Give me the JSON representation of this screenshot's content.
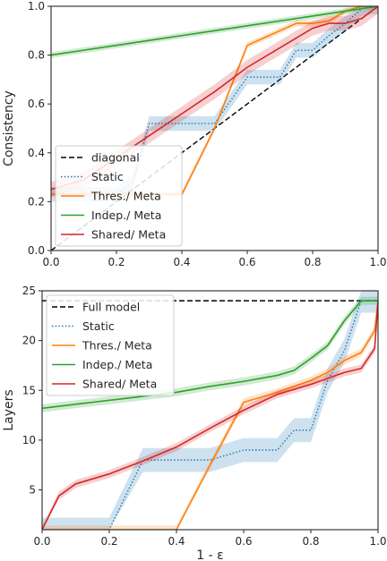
{
  "colors": {
    "diagonal": "#000000",
    "static": "#1f77b4",
    "thres": "#ff7f0e",
    "indep": "#2ca02c",
    "shared": "#d62728"
  },
  "chart_data": [
    {
      "type": "line",
      "xlabel": "",
      "ylabel": "Consistency",
      "xlim": [
        0,
        1
      ],
      "ylim": [
        0,
        1
      ],
      "xticks": [
        "0.0",
        "0.2",
        "0.4",
        "0.6",
        "0.8",
        "1.0"
      ],
      "yticks": [
        "0.0",
        "0.2",
        "0.4",
        "0.6",
        "0.8",
        "1.0"
      ],
      "legend_position": "lower-left",
      "series": [
        {
          "name": "diagonal",
          "style": "dashed",
          "color_key": "diagonal",
          "x": [
            0,
            1
          ],
          "y": [
            0,
            1
          ]
        },
        {
          "name": "Static",
          "style": "dotted",
          "color_key": "static",
          "x": [
            0.0,
            0.2,
            0.25,
            0.3,
            0.35,
            0.45,
            0.5,
            0.6,
            0.7,
            0.75,
            0.8,
            0.85,
            0.9,
            0.95,
            1.0
          ],
          "y": [
            0.23,
            0.23,
            0.28,
            0.52,
            0.52,
            0.52,
            0.52,
            0.71,
            0.71,
            0.82,
            0.82,
            0.88,
            0.93,
            0.99,
            1.0
          ],
          "band": 0.03
        },
        {
          "name": "Thres./ Meta",
          "style": "solid",
          "color_key": "thres",
          "x": [
            0.0,
            0.2,
            0.3,
            0.4,
            0.5,
            0.6,
            0.65,
            0.7,
            0.75,
            0.8,
            0.85,
            0.9,
            0.95,
            1.0
          ],
          "y": [
            0.23,
            0.23,
            0.23,
            0.23,
            0.5,
            0.84,
            0.87,
            0.9,
            0.93,
            0.93,
            0.94,
            0.98,
            1.0,
            1.0
          ],
          "band": 0.012
        },
        {
          "name": "Indep./ Meta",
          "style": "solid",
          "color_key": "indep",
          "x": [
            0.0,
            0.1,
            0.2,
            0.3,
            0.4,
            0.5,
            0.6,
            0.7,
            0.8,
            0.85,
            0.9,
            0.95,
            1.0
          ],
          "y": [
            0.8,
            0.82,
            0.84,
            0.86,
            0.88,
            0.9,
            0.92,
            0.94,
            0.96,
            0.97,
            0.98,
            0.99,
            1.0
          ],
          "band": 0.012
        },
        {
          "name": "Shared/ Meta",
          "style": "solid",
          "color_key": "shared",
          "x": [
            0.0,
            0.1,
            0.2,
            0.3,
            0.4,
            0.5,
            0.6,
            0.7,
            0.8,
            0.85,
            0.9,
            0.95,
            1.0
          ],
          "y": [
            0.25,
            0.29,
            0.38,
            0.47,
            0.56,
            0.65,
            0.75,
            0.83,
            0.91,
            0.93,
            0.93,
            0.95,
            1.0
          ],
          "band": 0.03
        }
      ]
    },
    {
      "type": "line",
      "xlabel": "1 - ε",
      "ylabel": "Layers",
      "xlim": [
        0,
        1
      ],
      "ylim": [
        1,
        25
      ],
      "xticks": [
        "0.0",
        "0.2",
        "0.4",
        "0.6",
        "0.8",
        "1.0"
      ],
      "yticks": [
        "5",
        "10",
        "15",
        "20",
        "25"
      ],
      "legend_position": "top-left",
      "series": [
        {
          "name": "Full model",
          "style": "dashed",
          "color_key": "diagonal",
          "x": [
            0,
            1
          ],
          "y": [
            24,
            24
          ]
        },
        {
          "name": "Static",
          "style": "dotted",
          "color_key": "static",
          "x": [
            0.0,
            0.2,
            0.3,
            0.5,
            0.6,
            0.7,
            0.75,
            0.8,
            0.85,
            0.9,
            0.95,
            1.0
          ],
          "y": [
            1,
            1,
            8,
            8,
            9,
            9,
            11,
            11,
            16,
            19,
            24,
            24
          ],
          "band": 1.2
        },
        {
          "name": "Thres./ Meta",
          "style": "solid",
          "color_key": "thres",
          "x": [
            0.0,
            0.2,
            0.4,
            0.5,
            0.6,
            0.7,
            0.8,
            0.85,
            0.9,
            0.95,
            0.99,
            1.0
          ],
          "y": [
            1,
            1,
            1,
            7.5,
            13.8,
            14.8,
            16.0,
            16.8,
            18.0,
            18.8,
            21.0,
            24
          ],
          "band": 0.4
        },
        {
          "name": "Indep./ Meta",
          "style": "solid",
          "color_key": "indep",
          "x": [
            0.0,
            0.1,
            0.2,
            0.3,
            0.4,
            0.5,
            0.6,
            0.7,
            0.75,
            0.8,
            0.85,
            0.9,
            0.95,
            1.0
          ],
          "y": [
            13.2,
            13.6,
            14.0,
            14.4,
            14.8,
            15.4,
            15.9,
            16.5,
            17.0,
            18.2,
            19.5,
            22.0,
            24.0,
            24.0
          ],
          "band": 0.4
        },
        {
          "name": "Shared/ Meta",
          "style": "solid",
          "color_key": "shared",
          "x": [
            0.0,
            0.05,
            0.1,
            0.2,
            0.3,
            0.4,
            0.5,
            0.6,
            0.7,
            0.8,
            0.85,
            0.9,
            0.95,
            0.99,
            1.0
          ],
          "y": [
            1,
            4.4,
            5.6,
            6.6,
            7.9,
            9.3,
            11.2,
            13.0,
            14.6,
            15.6,
            16.2,
            16.8,
            17.2,
            19.2,
            24
          ],
          "band": 0.4
        }
      ]
    }
  ]
}
